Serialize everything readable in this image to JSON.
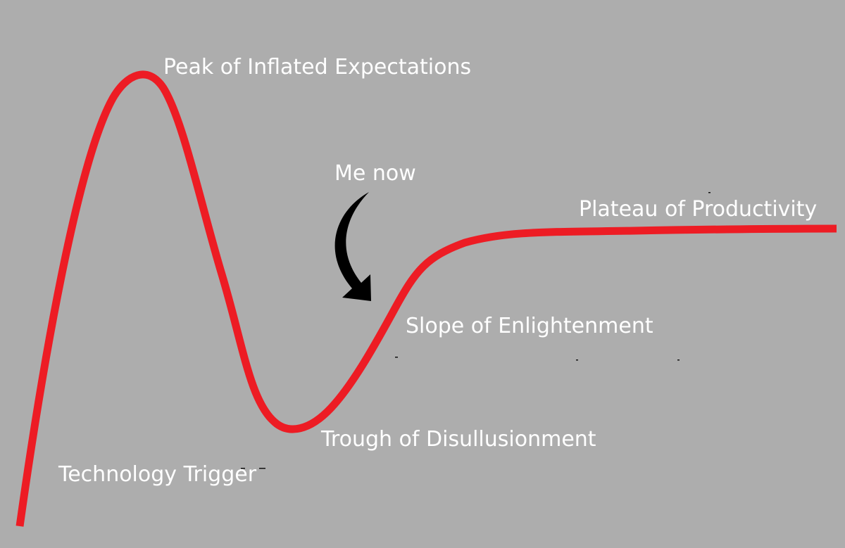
{
  "diagram": {
    "curve_color": "#ed1c24",
    "background_color": "#adadad",
    "label_color": "#ffffff",
    "arrow_color": "#000000",
    "phases": {
      "trigger": "Technology Trigger",
      "peak": "Peak of Inflated Expectations",
      "trough": "Trough of Disullusionment",
      "slope": "Slope of Enlightenment",
      "plateau": "Plateau of Productivity"
    },
    "annotation": {
      "text": "Me now",
      "icon": "curved-arrow-down-icon"
    }
  }
}
